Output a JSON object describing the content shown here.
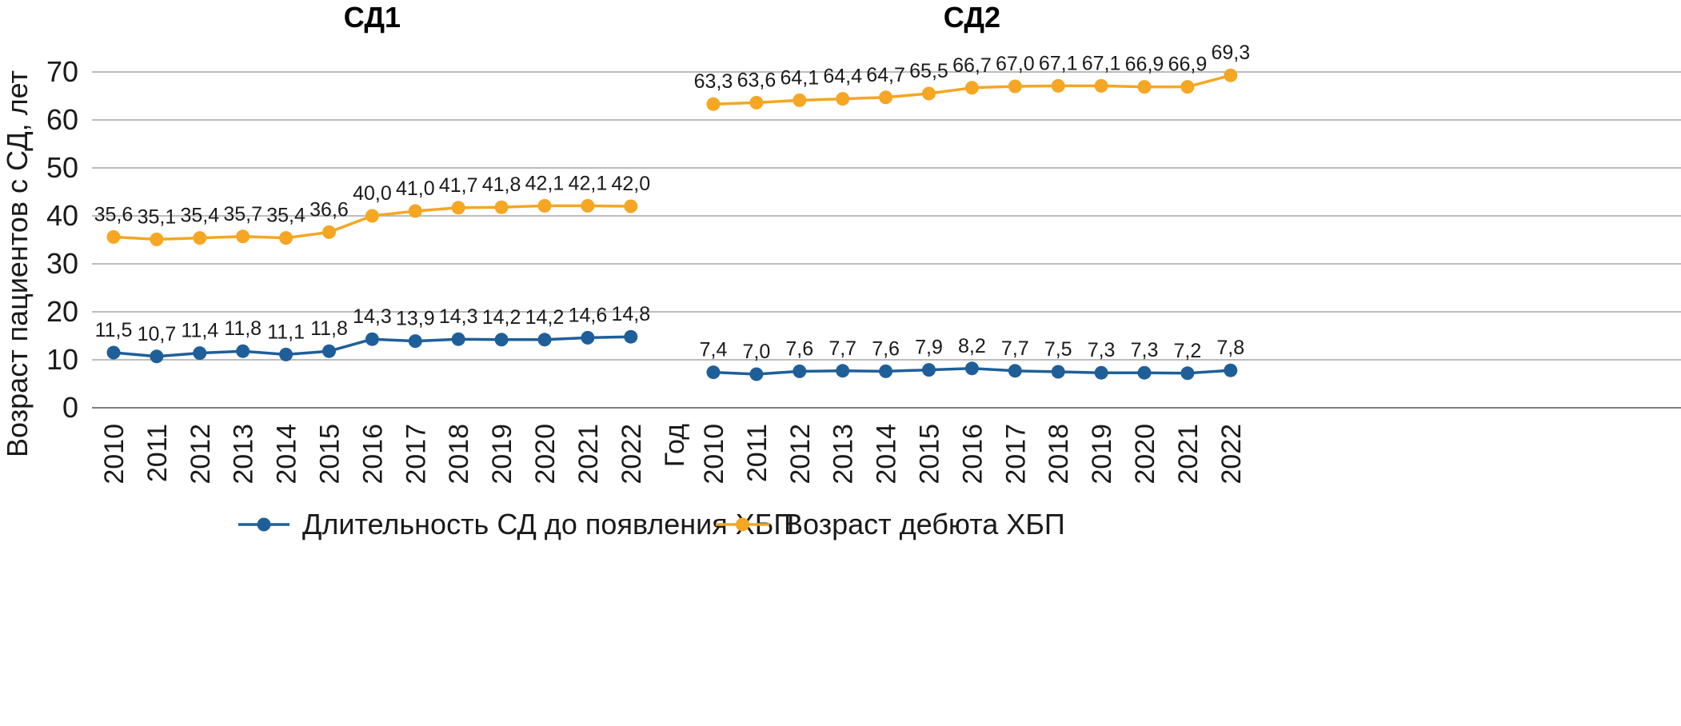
{
  "chart_data": {
    "type": "line",
    "ylabel": "Возраст пациентов с СД, лет",
    "xlabel": "Год",
    "ylim": [
      0,
      70
    ],
    "yticks": [
      "0",
      "10",
      "20",
      "30",
      "40",
      "50",
      "60",
      "70"
    ],
    "grid": true,
    "legend_position": "bottom",
    "colors": {
      "duration": "#1f5f99",
      "debut": "#f5a623"
    },
    "panels": [
      {
        "title": "СД1",
        "x": [
          "2010",
          "2011",
          "2012",
          "2013",
          "2014",
          "2015",
          "2016",
          "2017",
          "2018",
          "2019",
          "2020",
          "2021",
          "2022"
        ],
        "series": [
          {
            "name": "Длительность СД до появления ХБП",
            "values": [
              11.5,
              10.7,
              11.4,
              11.8,
              11.1,
              11.8,
              14.3,
              13.9,
              14.3,
              14.2,
              14.2,
              14.6,
              14.8
            ],
            "labels": [
              "11,5",
              "10,7",
              "11,4",
              "11,8",
              "11,1",
              "11,8",
              "14,3",
              "13,9",
              "14,3",
              "14,2",
              "14,2",
              "14,6",
              "14,8"
            ]
          },
          {
            "name": "Возраст дебюта ХБП",
            "values": [
              35.6,
              35.1,
              35.4,
              35.7,
              35.4,
              36.6,
              40.0,
              41.0,
              41.7,
              41.8,
              42.1,
              42.1,
              42.0
            ],
            "labels": [
              "35,6",
              "35,1",
              "35,4",
              "35,7",
              "35,4",
              "36,6",
              "40,0",
              "41,0",
              "41,7",
              "41,8",
              "42,1",
              "42,1",
              "42,0"
            ]
          }
        ]
      },
      {
        "title": "СД2",
        "x": [
          "2010",
          "2011",
          "2012",
          "2013",
          "2014",
          "2015",
          "2016",
          "2017",
          "2018",
          "2019",
          "2020",
          "2021",
          "2022"
        ],
        "series": [
          {
            "name": "Длительность СД до появления ХБП",
            "values": [
              7.4,
              7.0,
              7.6,
              7.7,
              7.6,
              7.9,
              8.2,
              7.7,
              7.5,
              7.3,
              7.3,
              7.2,
              7.8
            ],
            "labels": [
              "7,4",
              "7,0",
              "7,6",
              "7,7",
              "7,6",
              "7,9",
              "8,2",
              "7,7",
              "7,5",
              "7,3",
              "7,3",
              "7,2",
              "7,8"
            ]
          },
          {
            "name": "Возраст дебюта ХБП",
            "values": [
              63.3,
              63.6,
              64.1,
              64.4,
              64.7,
              65.5,
              66.7,
              67.0,
              67.1,
              67.1,
              66.9,
              66.9,
              69.3
            ],
            "labels": [
              "63,3",
              "63,6",
              "64,1",
              "64,4",
              "64,7",
              "65,5",
              "66,7",
              "67,0",
              "67,1",
              "67,1",
              "66,9",
              "66,9",
              "69,3"
            ]
          }
        ]
      }
    ],
    "legend": [
      "Длительность СД до появления ХБП",
      "Возраст дебюта ХБП"
    ]
  }
}
